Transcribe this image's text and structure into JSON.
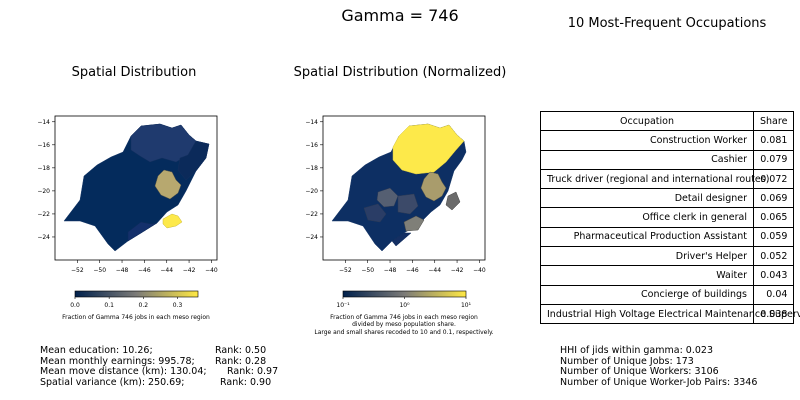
{
  "suptitle": "Gamma = 746",
  "panels": {
    "map1_title": "Spatial Distribution",
    "map2_title": "Spatial Distribution (Normalized)",
    "table_title": "10 Most-Frequent Occupations"
  },
  "colors": {
    "low": "#00204c",
    "mid": "#7c7b78",
    "high": "#ffe945",
    "background": "#ffffff"
  },
  "chart_data": [
    {
      "type": "heatmap",
      "title": "Spatial Distribution",
      "xticks": [
        "−52",
        "−50",
        "−48",
        "−46",
        "−44",
        "−42",
        "−40"
      ],
      "yticks": [
        "−14",
        "−16",
        "−18",
        "−20",
        "−22",
        "−24"
      ],
      "xlim": [
        -54,
        -39.5
      ],
      "ylim": [
        -26,
        -13.5
      ],
      "colorbar": {
        "ticks": [
          "0.0",
          "0.1",
          "0.2",
          "0.3"
        ],
        "range": [
          0,
          0.36
        ],
        "label": "Fraction of Gamma 746 jobs in each meso region"
      }
    },
    {
      "type": "heatmap",
      "title": "Spatial Distribution (Normalized)",
      "xticks": [
        "−52",
        "−50",
        "−48",
        "−46",
        "−44",
        "−42",
        "−40"
      ],
      "yticks": [
        "−14",
        "−16",
        "−18",
        "−20",
        "−22",
        "−24"
      ],
      "xlim": [
        -54,
        -39.5
      ],
      "ylim": [
        -26,
        -13.5
      ],
      "scale": "log",
      "colorbar": {
        "ticks": [
          "10⁻¹",
          "10⁰",
          "10¹"
        ],
        "range": [
          0.1,
          10
        ],
        "label_lines": [
          "Fraction of Gamma 746 jobs in each meso region",
          "divided by meso population share.",
          "Large and small shares recoded to 10 and 0.1, respectively."
        ]
      }
    },
    {
      "type": "table",
      "title": "10 Most-Frequent Occupations",
      "columns": [
        "Occupation",
        "Share"
      ],
      "rows": [
        [
          "Construction Worker",
          "0.081"
        ],
        [
          "Cashier",
          "0.079"
        ],
        [
          "Truck driver (regional and international routes)",
          "0.072"
        ],
        [
          "Detail designer",
          "0.069"
        ],
        [
          "Office clerk in general",
          "0.065"
        ],
        [
          "Pharmaceutical Production Assistant",
          "0.059"
        ],
        [
          "Driver's Helper",
          "0.052"
        ],
        [
          "Waiter",
          "0.043"
        ],
        [
          "Concierge of buildings",
          "0.04"
        ],
        [
          "Industrial High Voltage Electrical Maintenance Supervisor",
          "0.038"
        ]
      ]
    }
  ],
  "stats_left": [
    {
      "label": "Mean education: 10.26;",
      "rank": "Rank: 0.50"
    },
    {
      "label": "Mean monthly earnings: 995.78;",
      "rank": "Rank: 0.28"
    },
    {
      "label": "Mean move distance (km): 130.04;",
      "rank": "Rank: 0.97"
    },
    {
      "label": "Spatial variance (km): 250.69;",
      "rank": "Rank: 0.90"
    }
  ],
  "stats_right": [
    "HHI of jids within gamma: 0.023",
    "Number of Unique Jobs: 173",
    "Number of Unique Workers: 3106",
    "Number of Unique Worker-Job Pairs: 3346"
  ]
}
